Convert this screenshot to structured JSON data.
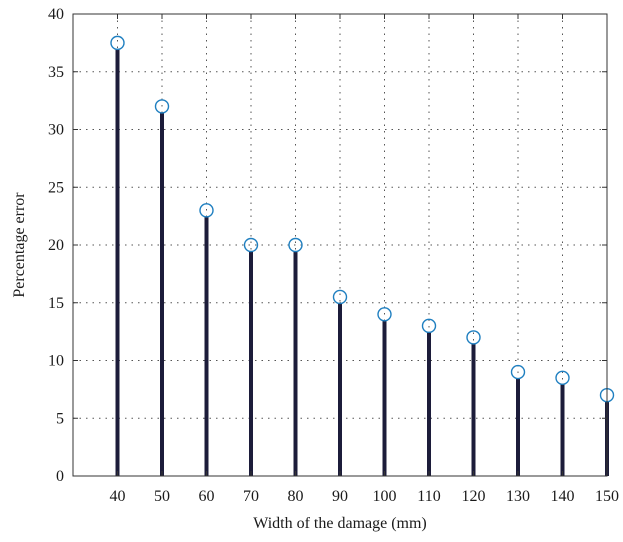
{
  "chart_data": {
    "type": "stem",
    "xlabel": "Width of the damage (mm)",
    "ylabel": "Percentage error",
    "x": [
      40,
      50,
      60,
      70,
      80,
      90,
      100,
      110,
      120,
      130,
      140,
      150
    ],
    "values": [
      37.5,
      32,
      23,
      20,
      20,
      15.5,
      14,
      13,
      12,
      9,
      8.5,
      7
    ],
    "xlim": [
      30,
      150
    ],
    "ylim": [
      0,
      40
    ],
    "yticks": [
      0,
      5,
      10,
      15,
      20,
      25,
      30,
      35,
      40
    ],
    "grid": true,
    "colors": {
      "stem": "#1c1c3a",
      "marker": "#1f7fc0",
      "grid": "#555555",
      "axis": "#333333"
    }
  }
}
